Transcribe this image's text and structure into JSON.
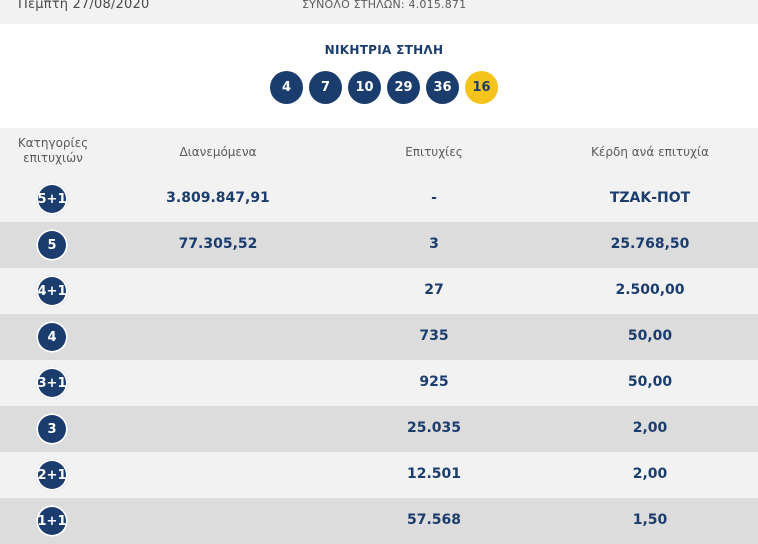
{
  "header": {
    "date": "Πέμπτη 27/08/2020",
    "total_columns": "ΣΥΝΟΛΟ ΣΤΗΛΩΝ: 4.015.871"
  },
  "winning": {
    "title": "ΝΙΚΗΤΡΙΑ ΣΤΗΛΗ",
    "numbers": [
      "4",
      "7",
      "10",
      "29",
      "36"
    ],
    "joker": "16"
  },
  "table": {
    "columns": {
      "category": "Κατηγορίες επιτυχιών",
      "distributed": "Διανεμόμενα",
      "winners": "Επιτυχίες",
      "prize": "Κέρδη ανά επιτυχία"
    },
    "rows": [
      {
        "category": "5+1",
        "distributed": "3.809.847,91",
        "winners": "-",
        "prize": "ΤΖΑΚ-ΠΟΤ"
      },
      {
        "category": "5",
        "distributed": "77.305,52",
        "winners": "3",
        "prize": "25.768,50"
      },
      {
        "category": "4+1",
        "distributed": "",
        "winners": "27",
        "prize": "2.500,00"
      },
      {
        "category": "4",
        "distributed": "",
        "winners": "735",
        "prize": "50,00"
      },
      {
        "category": "3+1",
        "distributed": "",
        "winners": "925",
        "prize": "50,00"
      },
      {
        "category": "3",
        "distributed": "",
        "winners": "25.035",
        "prize": "2,00"
      },
      {
        "category": "2+1",
        "distributed": "",
        "winners": "12.501",
        "prize": "2,00"
      },
      {
        "category": "1+1",
        "distributed": "",
        "winners": "57.568",
        "prize": "1,50"
      }
    ]
  },
  "colors": {
    "navy": "#1b3d6d",
    "joker_yellow": "#f5c41a",
    "row_light": "#f2f2f2",
    "row_dark": "#dcdcdc"
  }
}
